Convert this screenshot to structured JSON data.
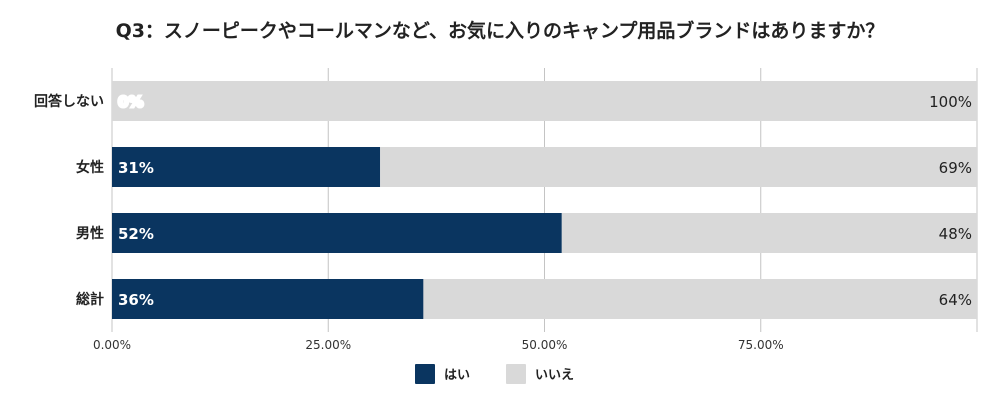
{
  "chart_data": {
    "type": "bar",
    "orientation": "horizontal",
    "stacked": true,
    "title": "Q3：スノーピークやコールマンなど、お気に入りのキャンプ用品ブランドはありますか？",
    "categories": [
      "回答しない",
      "女性",
      "男性",
      "総計"
    ],
    "series": [
      {
        "name": "はい",
        "values": [
          0,
          31,
          52,
          36
        ],
        "labels": [
          "0%",
          "31%",
          "52%",
          "36%"
        ],
        "color": "#0a3560"
      },
      {
        "name": "いいえ",
        "values": [
          100,
          69,
          48,
          64
        ],
        "labels": [
          "100%",
          "69%",
          "48%",
          "64%"
        ],
        "color": "#d9d9d9"
      }
    ],
    "x_ticks": [
      "0.00%",
      "25.00%",
      "50.00%",
      "75.00%"
    ],
    "x_tick_values": [
      0,
      25,
      50,
      75
    ],
    "xlim": [
      0,
      100
    ],
    "grid": true,
    "legend_position": "bottom"
  }
}
